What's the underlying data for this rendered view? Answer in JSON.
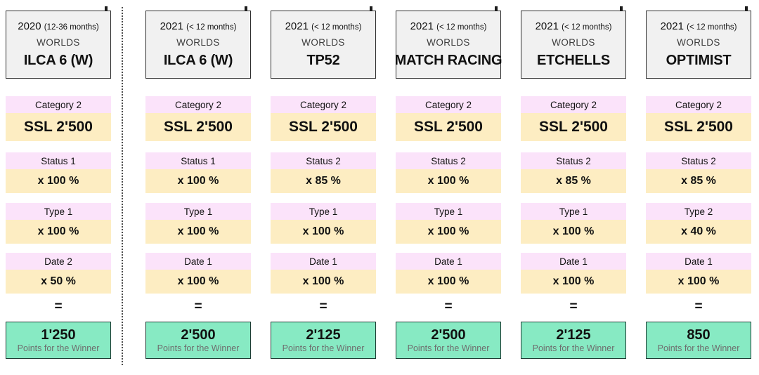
{
  "equals": "=",
  "result_caption": "Points for the Winner",
  "colors": {
    "header_bg": "#f1f1f1",
    "header_border": "#2f2f2f",
    "factor_label_bg": "#fbe3fa",
    "factor_value_bg": "#fdedc2",
    "result_bg": "#87eac3",
    "result_border": "#1d3b33",
    "caption_text": "#6e6e6e",
    "divider": "#4d4d4d"
  },
  "columns": [
    {
      "header": {
        "year": "2020",
        "note": "(12-36 months)",
        "event": "WORLDS",
        "class_name": "ILCA 6 (W)"
      },
      "factors": [
        {
          "label": "Category 2",
          "value": "SSL 2'500"
        },
        {
          "label": "Status 1",
          "value": "x 100 %"
        },
        {
          "label": "Type 1",
          "value": "x 100 %"
        },
        {
          "label": "Date 2",
          "value": "x 50 %"
        }
      ],
      "result": {
        "points": "1'250"
      }
    },
    {
      "header": {
        "year": "2021",
        "note": "(< 12 months)",
        "event": "WORLDS",
        "class_name": "ILCA 6 (W)"
      },
      "factors": [
        {
          "label": "Category 2",
          "value": "SSL 2'500"
        },
        {
          "label": "Status 1",
          "value": "x 100 %"
        },
        {
          "label": "Type 1",
          "value": "x 100 %"
        },
        {
          "label": "Date 1",
          "value": "x 100 %"
        }
      ],
      "result": {
        "points": "2'500"
      }
    },
    {
      "header": {
        "year": "2021",
        "note": "(< 12 months)",
        "event": "WORLDS",
        "class_name": "TP52"
      },
      "factors": [
        {
          "label": "Category 2",
          "value": "SSL 2'500"
        },
        {
          "label": "Status 2",
          "value": "x 85 %"
        },
        {
          "label": "Type 1",
          "value": "x 100 %"
        },
        {
          "label": "Date 1",
          "value": "x 100 %"
        }
      ],
      "result": {
        "points": "2'125"
      }
    },
    {
      "header": {
        "year": "2021",
        "note": "(< 12 months)",
        "event": "WORLDS",
        "class_name": "MATCH RACING"
      },
      "factors": [
        {
          "label": "Category 2",
          "value": "SSL 2'500"
        },
        {
          "label": "Status 2",
          "value": "x 100 %"
        },
        {
          "label": "Type 1",
          "value": "x 100 %"
        },
        {
          "label": "Date 1",
          "value": "x 100 %"
        }
      ],
      "result": {
        "points": "2'500"
      }
    },
    {
      "header": {
        "year": "2021",
        "note": "(< 12 months)",
        "event": "WORLDS",
        "class_name": "ETCHELLS"
      },
      "factors": [
        {
          "label": "Category 2",
          "value": "SSL 2'500"
        },
        {
          "label": "Status 2",
          "value": "x 85 %"
        },
        {
          "label": "Type 1",
          "value": "x 100 %"
        },
        {
          "label": "Date 1",
          "value": "x 100 %"
        }
      ],
      "result": {
        "points": "2'125"
      }
    },
    {
      "header": {
        "year": "2021",
        "note": "(< 12 months)",
        "event": "WORLDS",
        "class_name": "OPTIMIST"
      },
      "factors": [
        {
          "label": "Category 2",
          "value": "SSL 2'500"
        },
        {
          "label": "Status 2",
          "value": "x 85 %"
        },
        {
          "label": "Type 2",
          "value": "x 40 %"
        },
        {
          "label": "Date 1",
          "value": "x 100 %"
        }
      ],
      "result": {
        "points": "850"
      }
    }
  ]
}
